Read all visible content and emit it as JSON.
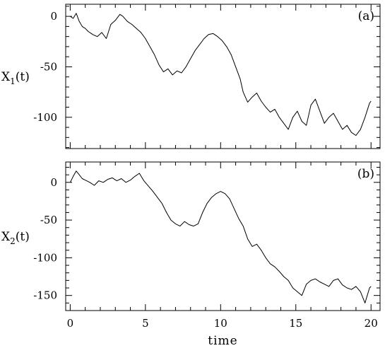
{
  "chart_data": [
    {
      "type": "line",
      "panel_label": "(a)",
      "ylabel_base": "X",
      "ylabel_sub": "1",
      "ylabel_tail": "(t)",
      "xlabel": "",
      "xlim": [
        -0.3,
        20.6
      ],
      "ylim": [
        -131,
        12
      ],
      "x_ticks": [
        0,
        5,
        10,
        15,
        20
      ],
      "y_ticks": [
        0,
        -50,
        -100
      ],
      "series": [
        {
          "x": [
            0,
            0.2,
            0.4,
            0.6,
            0.8,
            1.0,
            1.2,
            1.5,
            1.8,
            2.1,
            2.4,
            2.7,
            3.0,
            3.3,
            3.5,
            3.8,
            4.1,
            4.4,
            4.7,
            5.0,
            5.3,
            5.6,
            5.9,
            6.2,
            6.5,
            6.8,
            7.1,
            7.4,
            7.7,
            8.0,
            8.3,
            8.6,
            8.9,
            9.2,
            9.5,
            9.8,
            10.1,
            10.4,
            10.7,
            11.0,
            11.3,
            11.5,
            11.8,
            12.1,
            12.4,
            12.7,
            13.0,
            13.3,
            13.6,
            13.9,
            14.2,
            14.5,
            14.8,
            15.1,
            15.4,
            15.7,
            16.0,
            16.3,
            16.6,
            16.9,
            17.2,
            17.5,
            17.8,
            18.1,
            18.4,
            18.7,
            19.0,
            19.3,
            19.6,
            19.9,
            20.0
          ],
          "y": [
            0,
            -2,
            3,
            -5,
            -10,
            -12,
            -15,
            -18,
            -20,
            -16,
            -22,
            -8,
            -4,
            2,
            0,
            -5,
            -8,
            -12,
            -16,
            -22,
            -30,
            -38,
            -48,
            -55,
            -52,
            -58,
            -54,
            -56,
            -50,
            -42,
            -34,
            -28,
            -22,
            -18,
            -17,
            -20,
            -24,
            -30,
            -38,
            -50,
            -62,
            -75,
            -85,
            -80,
            -76,
            -84,
            -90,
            -95,
            -92,
            -100,
            -106,
            -112,
            -100,
            -94,
            -104,
            -108,
            -88,
            -82,
            -94,
            -106,
            -100,
            -96,
            -104,
            -112,
            -108,
            -115,
            -118,
            -112,
            -100,
            -86,
            -84
          ]
        }
      ]
    },
    {
      "type": "line",
      "panel_label": "(b)",
      "ylabel_base": "X",
      "ylabel_sub": "2",
      "ylabel_tail": "(t)",
      "xlabel": "time",
      "xlim": [
        -0.3,
        20.6
      ],
      "ylim": [
        -170,
        27
      ],
      "x_ticks": [
        0,
        5,
        10,
        15,
        20
      ],
      "x_tick_labels": [
        "0",
        "5",
        "10",
        "15",
        "20"
      ],
      "y_ticks": [
        0,
        -50,
        -100,
        -150
      ],
      "series": [
        {
          "x": [
            0,
            0.2,
            0.4,
            0.6,
            0.8,
            1.0,
            1.3,
            1.6,
            1.9,
            2.2,
            2.5,
            2.8,
            3.1,
            3.4,
            3.7,
            4.0,
            4.3,
            4.6,
            4.9,
            5.2,
            5.5,
            5.8,
            6.1,
            6.4,
            6.7,
            7.0,
            7.3,
            7.6,
            7.9,
            8.2,
            8.5,
            8.8,
            9.1,
            9.4,
            9.7,
            10.0,
            10.3,
            10.6,
            10.9,
            11.2,
            11.5,
            11.8,
            12.1,
            12.4,
            12.7,
            13.0,
            13.3,
            13.6,
            13.9,
            14.2,
            14.5,
            14.8,
            15.1,
            15.4,
            15.7,
            16.0,
            16.3,
            16.6,
            16.9,
            17.2,
            17.5,
            17.8,
            18.1,
            18.4,
            18.7,
            19.0,
            19.3,
            19.6,
            19.9,
            20.0
          ],
          "y": [
            0,
            8,
            15,
            10,
            5,
            3,
            0,
            -4,
            2,
            0,
            4,
            6,
            2,
            5,
            0,
            3,
            8,
            12,
            2,
            -5,
            -12,
            -20,
            -28,
            -40,
            -50,
            -55,
            -58,
            -52,
            -56,
            -58,
            -55,
            -40,
            -28,
            -20,
            -15,
            -12,
            -15,
            -22,
            -35,
            -48,
            -58,
            -75,
            -85,
            -82,
            -90,
            -100,
            -108,
            -112,
            -118,
            -125,
            -130,
            -140,
            -145,
            -150,
            -135,
            -130,
            -128,
            -132,
            -135,
            -138,
            -130,
            -128,
            -136,
            -140,
            -142,
            -138,
            -145,
            -160,
            -140,
            -138
          ]
        }
      ]
    }
  ]
}
